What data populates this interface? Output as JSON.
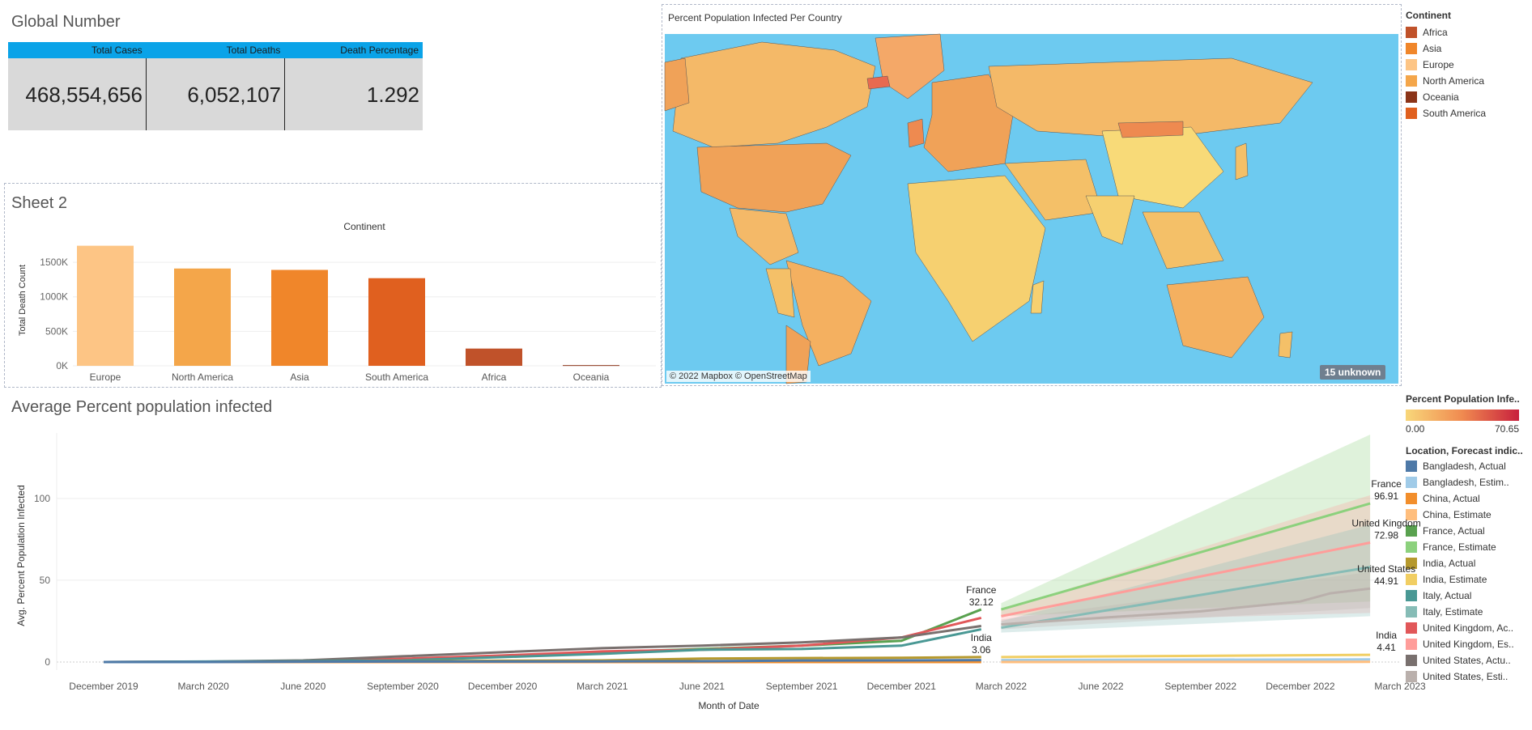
{
  "kpi": {
    "title": "Global Number",
    "headers": [
      "Total Cases",
      "Total Deaths",
      "Death Percentage"
    ],
    "values": [
      "468,554,656",
      "6,052,107",
      "1.292"
    ]
  },
  "sheet2": {
    "title": "Sheet 2"
  },
  "map": {
    "title": "Percent Population Infected Per Country",
    "credit": "© 2022 Mapbox © OpenStreetMap",
    "unknown": "15 unknown"
  },
  "continent_legend": {
    "title": "Continent",
    "items": [
      {
        "label": "Africa",
        "color": "#c0522a"
      },
      {
        "label": "Asia",
        "color": "#f0862a"
      },
      {
        "label": "Europe",
        "color": "#fdc585"
      },
      {
        "label": "North America",
        "color": "#f4a64a"
      },
      {
        "label": "Oceania",
        "color": "#8b3418"
      },
      {
        "label": "South America",
        "color": "#e0601f"
      }
    ]
  },
  "gradient_legend": {
    "title": "Percent Population Infe..",
    "min": "0.00",
    "max": "70.65",
    "color_low": "#f8d77a",
    "color_high": "#c8203d"
  },
  "line_legend": {
    "title": "Location, Forecast indic..",
    "items": [
      {
        "label": "Bangladesh, Actual",
        "color": "#4e79a7"
      },
      {
        "label": "Bangladesh, Estim..",
        "color": "#a0cbe8"
      },
      {
        "label": "China, Actual",
        "color": "#f28e2b"
      },
      {
        "label": "China, Estimate",
        "color": "#ffbe7d"
      },
      {
        "label": "France, Actual",
        "color": "#59a14f"
      },
      {
        "label": "France, Estimate",
        "color": "#8cd17d"
      },
      {
        "label": "India, Actual",
        "color": "#b6992d"
      },
      {
        "label": "India, Estimate",
        "color": "#f1ce63"
      },
      {
        "label": "Italy, Actual",
        "color": "#499894"
      },
      {
        "label": "Italy, Estimate",
        "color": "#86bcb6"
      },
      {
        "label": "United Kingdom, Ac..",
        "color": "#e15759"
      },
      {
        "label": "United Kingdom, Es..",
        "color": "#ff9d9a"
      },
      {
        "label": "United States, Actu..",
        "color": "#79706e"
      },
      {
        "label": "United States, Esti..",
        "color": "#bab0ac"
      }
    ]
  },
  "chart_data": [
    {
      "type": "bar",
      "title": "Continent",
      "xlabel": "",
      "ylabel": "Total Death Count",
      "categories": [
        "Europe",
        "North America",
        "Asia",
        "South America",
        "Africa",
        "Oceania"
      ],
      "values": [
        1740000,
        1410000,
        1390000,
        1270000,
        250000,
        10000
      ],
      "colors": [
        "#fdc585",
        "#f4a64a",
        "#f0862a",
        "#e0601f",
        "#c0522a",
        "#8b3418"
      ],
      "yticks": [
        "0K",
        "500K",
        "1000K",
        "1500K"
      ],
      "ylim": [
        0,
        1900000
      ],
      "grid": true
    },
    {
      "type": "line",
      "title": "Average Percent population infected",
      "xlabel": "Month of Date",
      "ylabel": "Avg. Percent Population Infected",
      "x_ticks": [
        "December 2019",
        "March 2020",
        "June 2020",
        "September 2020",
        "December 2020",
        "March 2021",
        "June 2021",
        "September 2021",
        "December 2021",
        "March 2022",
        "June 2022",
        "September 2022",
        "December 2022",
        "March 2023"
      ],
      "y_ticks": [
        "0",
        "50",
        "100"
      ],
      "ylim": [
        0,
        140
      ],
      "grid": true,
      "series": [
        {
          "name": "France, Actual",
          "color": "#59a14f",
          "x": [
            0,
            1,
            2,
            3,
            4,
            5,
            6,
            7,
            8,
            8.8
          ],
          "y": [
            0,
            0.1,
            0.5,
            1.5,
            3.5,
            6,
            8,
            10,
            13,
            32.12
          ]
        },
        {
          "name": "United Kingdom, Actual",
          "color": "#e15759",
          "x": [
            0,
            1,
            2,
            3,
            4,
            5,
            6,
            7,
            8,
            8.8
          ],
          "y": [
            0,
            0.1,
            0.6,
            2,
            4,
            6.5,
            7.5,
            10,
            15,
            27
          ]
        },
        {
          "name": "United States, Actual",
          "color": "#79706e",
          "x": [
            0,
            1,
            2,
            3,
            4,
            5,
            6,
            7,
            8,
            8.8
          ],
          "y": [
            0,
            0.2,
            1,
            3.5,
            6,
            8.5,
            10,
            12,
            15,
            22
          ]
        },
        {
          "name": "Italy, Actual",
          "color": "#499894",
          "x": [
            0,
            1,
            2,
            3,
            4,
            5,
            6,
            7,
            8,
            8.8
          ],
          "y": [
            0,
            0.3,
            0.5,
            1,
            3,
            5,
            7.5,
            8,
            10,
            20
          ]
        },
        {
          "name": "India, Actual",
          "color": "#b6992d",
          "x": [
            0,
            1,
            2,
            3,
            4,
            5,
            6,
            7,
            8,
            8.8
          ],
          "y": [
            0,
            0,
            0.1,
            0.4,
            0.8,
            1,
            2.1,
            2.4,
            2.6,
            3.06
          ]
        },
        {
          "name": "China, Actual",
          "color": "#f28e2b",
          "x": [
            0,
            1,
            2,
            3,
            4,
            5,
            6,
            7,
            8,
            8.8
          ],
          "y": [
            0,
            0,
            0,
            0,
            0,
            0,
            0,
            0,
            0,
            0
          ]
        },
        {
          "name": "Bangladesh, Actual",
          "color": "#4e79a7",
          "x": [
            0,
            1,
            2,
            3,
            4,
            5,
            6,
            7,
            8,
            8.8
          ],
          "y": [
            0,
            0,
            0.2,
            0.3,
            0.3,
            0.4,
            0.5,
            0.9,
            1,
            1.2
          ]
        },
        {
          "name": "France, Estimate",
          "color": "#8cd17d",
          "x": [
            9,
            12.7
          ],
          "y": [
            32.12,
            96.91
          ],
          "band": [
            [
              28,
              36
            ],
            [
              37,
              139
            ]
          ]
        },
        {
          "name": "United Kingdom, Estimate",
          "color": "#ff9d9a",
          "x": [
            9,
            12.7
          ],
          "y": [
            28,
            72.98
          ],
          "band": [
            [
              24,
              32
            ],
            [
              30,
              102
            ]
          ]
        },
        {
          "name": "Italy, Estimate",
          "color": "#86bcb6",
          "x": [
            9,
            12.7
          ],
          "y": [
            21,
            58
          ],
          "band": [
            [
              18,
              25
            ],
            [
              28,
              84
            ]
          ]
        },
        {
          "name": "United States, Estimate",
          "color": "#bab0ac",
          "x": [
            9,
            10,
            11,
            12,
            12.3,
            12.7
          ],
          "y": [
            23,
            27,
            31,
            37,
            42,
            44.91
          ],
          "band": [
            [
              20,
              26
            ],
            [
              33,
              55
            ]
          ]
        },
        {
          "name": "India, Estimate",
          "color": "#f1ce63",
          "x": [
            9,
            12.7
          ],
          "y": [
            3.06,
            4.41
          ]
        },
        {
          "name": "Bangladesh, Estimate",
          "color": "#a0cbe8",
          "x": [
            9,
            12.7
          ],
          "y": [
            1.2,
            1.6
          ]
        },
        {
          "name": "China, Estimate",
          "color": "#ffbe7d",
          "x": [
            9,
            12.7
          ],
          "y": [
            0,
            0.1
          ]
        }
      ],
      "annotations": [
        {
          "name": "France",
          "value": "32.12",
          "x": 8.8,
          "y": 32.12
        },
        {
          "name": "India",
          "value": "3.06",
          "x": 8.8,
          "y": 3.06
        },
        {
          "name": "France",
          "value": "96.91",
          "x": 12.7,
          "y": 96.91
        },
        {
          "name": "United Kingdom",
          "value": "72.98",
          "x": 12.7,
          "y": 72.98
        },
        {
          "name": "United States",
          "value": "44.91",
          "x": 12.7,
          "y": 44.91
        },
        {
          "name": "India",
          "value": "4.41",
          "x": 12.7,
          "y": 4.41
        }
      ]
    }
  ]
}
